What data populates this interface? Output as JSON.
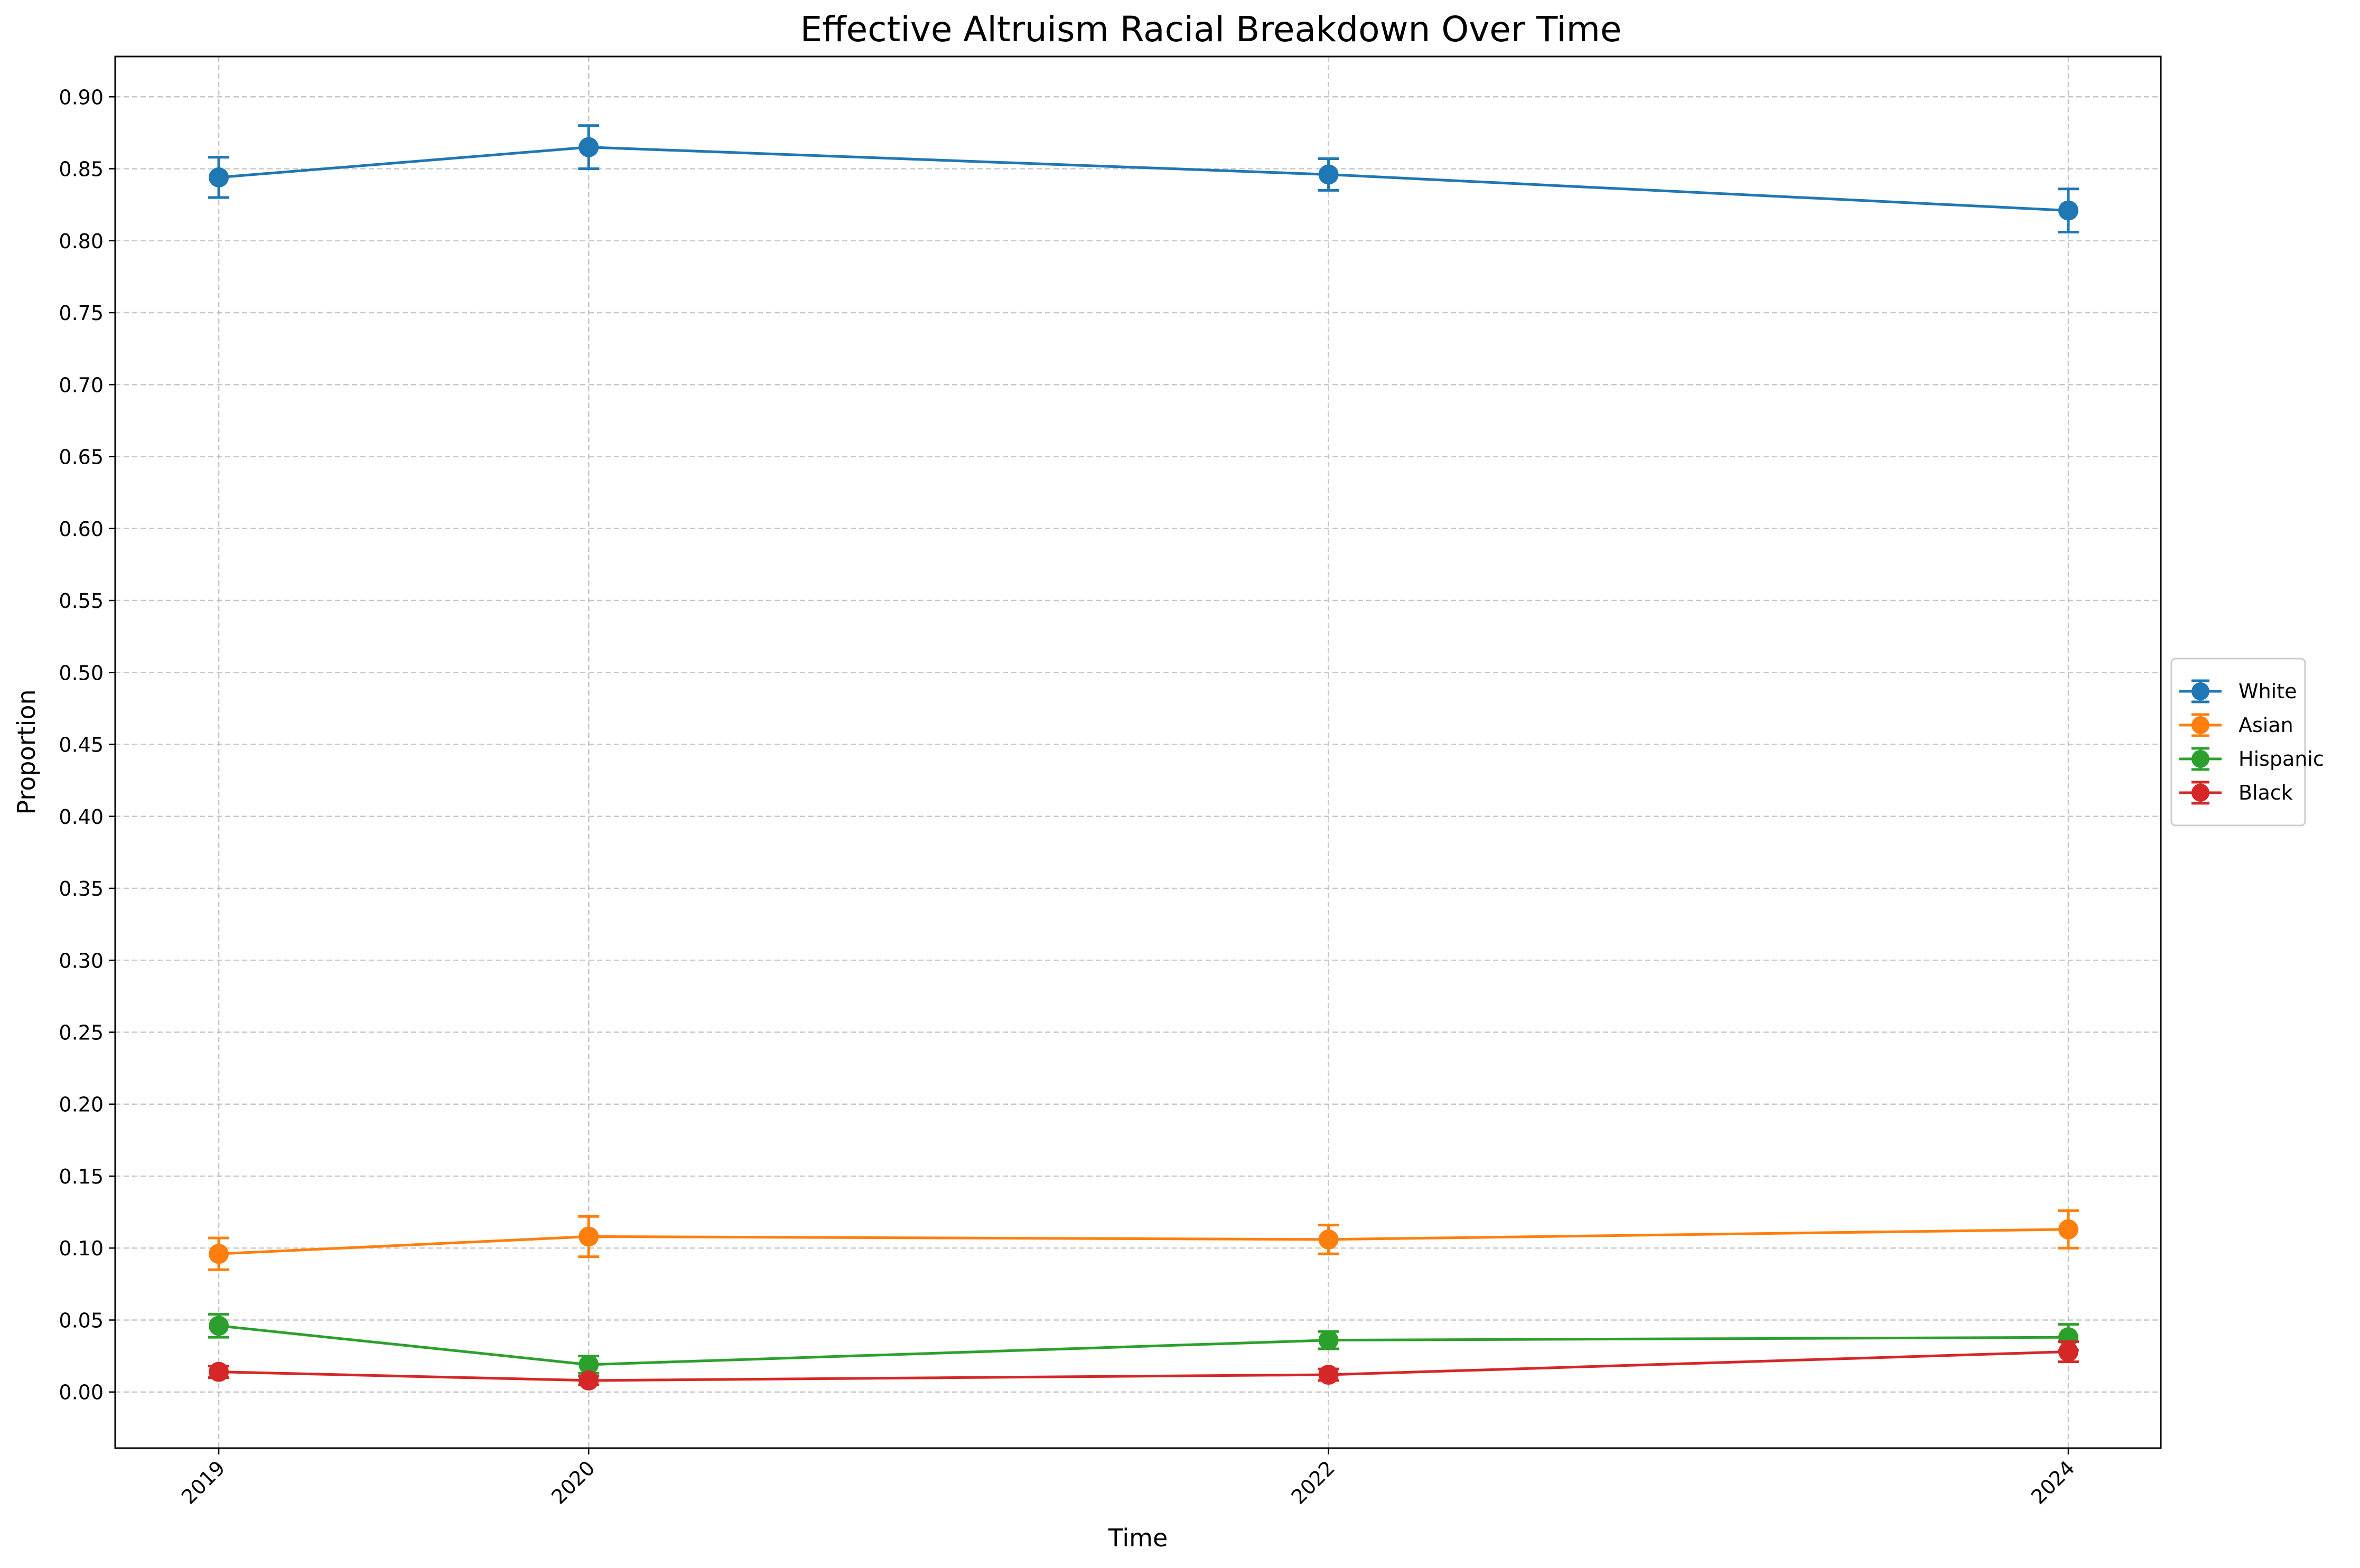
{
  "chart_data": {
    "type": "line",
    "title": "Effective Altruism Racial Breakdown Over Time",
    "xlabel": "Time",
    "ylabel": "Proportion",
    "x": [
      2019,
      2020,
      2022,
      2024
    ],
    "x_tick_labels": [
      "2019",
      "2020",
      "2022",
      "2024"
    ],
    "xlim": [
      2018.72,
      2024.25
    ],
    "ylim": [
      -0.039,
      0.928
    ],
    "y_ticks": [
      0.0,
      0.05,
      0.1,
      0.15,
      0.2,
      0.25,
      0.3,
      0.35,
      0.4,
      0.45,
      0.5,
      0.55,
      0.6,
      0.65,
      0.7,
      0.75,
      0.8,
      0.85,
      0.9
    ],
    "y_tick_labels": [
      "0.00",
      "0.05",
      "0.10",
      "0.15",
      "0.20",
      "0.25",
      "0.30",
      "0.35",
      "0.40",
      "0.45",
      "0.50",
      "0.55",
      "0.60",
      "0.65",
      "0.70",
      "0.75",
      "0.80",
      "0.85",
      "0.90"
    ],
    "grid": true,
    "legend_position": "right-center-outside",
    "series": [
      {
        "name": "White",
        "color": "#1f77b4",
        "values": [
          0.844,
          0.865,
          0.846,
          0.821
        ],
        "errors": [
          0.014,
          0.015,
          0.011,
          0.015
        ]
      },
      {
        "name": "Asian",
        "color": "#ff7f0e",
        "values": [
          0.096,
          0.108,
          0.106,
          0.113
        ],
        "errors": [
          0.011,
          0.014,
          0.01,
          0.013
        ]
      },
      {
        "name": "Hispanic",
        "color": "#2ca02c",
        "values": [
          0.046,
          0.019,
          0.036,
          0.038
        ],
        "errors": [
          0.008,
          0.006,
          0.006,
          0.009
        ]
      },
      {
        "name": "Black",
        "color": "#d62728",
        "values": [
          0.014,
          0.008,
          0.012,
          0.028
        ],
        "errors": [
          0.004,
          0.003,
          0.004,
          0.007
        ]
      }
    ]
  }
}
